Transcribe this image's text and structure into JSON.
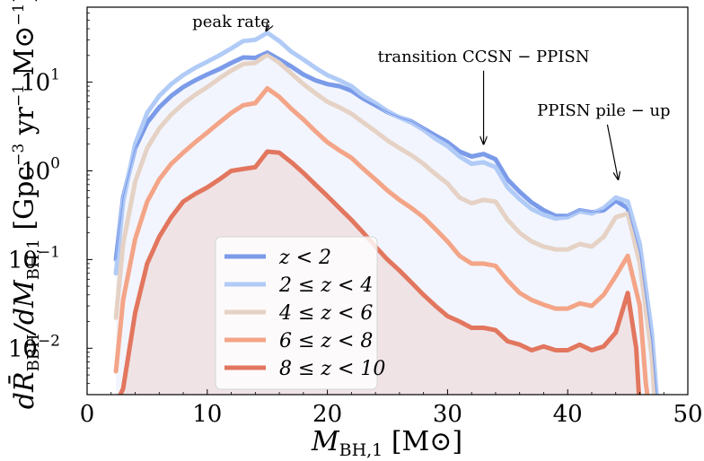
{
  "chart_data": {
    "type": "line",
    "title": "",
    "xlabel": "M_BH,1 [M⊙]",
    "ylabel": "dR̄_BBH/dM_BH,1 [Gpc⁻³ yr⁻¹ M⊙⁻¹]",
    "xlim": [
      0,
      50
    ],
    "ylim": [
      0.003,
      70
    ],
    "yscale": "log",
    "grid": false,
    "legend_position": "lower-left",
    "xticks": [
      {
        "value": 0,
        "label": "0"
      },
      {
        "value": 10,
        "label": "10"
      },
      {
        "value": 20,
        "label": "20"
      },
      {
        "value": 30,
        "label": "30"
      },
      {
        "value": 40,
        "label": "40"
      },
      {
        "value": 50,
        "label": "50"
      }
    ],
    "yticks": [
      {
        "value": 0.01,
        "base": "10",
        "exp": "−2"
      },
      {
        "value": 0.1,
        "base": "10",
        "exp": "−1"
      },
      {
        "value": 1,
        "base": "10",
        "exp": "0"
      },
      {
        "value": 10,
        "base": "10",
        "exp": "1"
      }
    ],
    "annotations": [
      {
        "text": "peak rate",
        "text_xy": [
          12,
          42
        ],
        "arrow_to": [
          14.9,
          38
        ]
      },
      {
        "text": "transition CCSN − PPISN",
        "text_xy": [
          33,
          17
        ],
        "arrow_to": [
          33.0,
          2.0
        ]
      },
      {
        "text": "PPISN pile − up",
        "text_xy": [
          43,
          4.2
        ],
        "arrow_to": [
          44.2,
          0.8
        ]
      }
    ],
    "series": [
      {
        "name": "z < 2",
        "color": "#7b9be9",
        "fill": true,
        "points": [
          [
            2.4,
            0.1
          ],
          [
            3,
            0.5
          ],
          [
            4,
            1.8
          ],
          [
            5,
            3.5
          ],
          [
            6,
            5.2
          ],
          [
            7,
            7.0
          ],
          [
            8,
            8.8
          ],
          [
            9,
            10.5
          ],
          [
            10,
            12.2
          ],
          [
            11,
            14.0
          ],
          [
            12,
            16.5
          ],
          [
            13,
            19.0
          ],
          [
            14,
            18.8
          ],
          [
            15,
            21.5
          ],
          [
            16,
            18.0
          ],
          [
            17,
            15.0
          ],
          [
            18,
            12.2
          ],
          [
            19,
            10.5
          ],
          [
            20,
            9.5
          ],
          [
            21,
            9.0
          ],
          [
            22,
            8.0
          ],
          [
            23,
            6.5
          ],
          [
            24,
            5.5
          ],
          [
            25,
            4.6
          ],
          [
            26,
            4.0
          ],
          [
            27,
            3.6
          ],
          [
            28,
            3.0
          ],
          [
            29,
            2.5
          ],
          [
            30,
            2.1
          ],
          [
            31,
            1.65
          ],
          [
            32,
            1.45
          ],
          [
            33,
            1.55
          ],
          [
            34,
            1.35
          ],
          [
            35,
            0.8
          ],
          [
            36,
            0.58
          ],
          [
            37,
            0.44
          ],
          [
            38,
            0.36
          ],
          [
            39,
            0.31
          ],
          [
            40,
            0.31
          ],
          [
            41,
            0.36
          ],
          [
            42,
            0.34
          ],
          [
            43,
            0.36
          ],
          [
            44,
            0.46
          ],
          [
            45,
            0.38
          ],
          [
            46,
            0.12
          ],
          [
            47,
            0.012
          ],
          [
            47.5,
            0.002
          ]
        ]
      },
      {
        "name": "2 ≤ z < 4",
        "color": "#b1cbf7",
        "fill": false,
        "points": [
          [
            2.4,
            0.07
          ],
          [
            3,
            0.45
          ],
          [
            4,
            2.0
          ],
          [
            5,
            4.5
          ],
          [
            6,
            7.0
          ],
          [
            7,
            9.5
          ],
          [
            8,
            12.0
          ],
          [
            9,
            14.5
          ],
          [
            10,
            17.0
          ],
          [
            11,
            20.0
          ],
          [
            12,
            24.0
          ],
          [
            13,
            29.0
          ],
          [
            14,
            30.0
          ],
          [
            15,
            36.0
          ],
          [
            16,
            29.0
          ],
          [
            17,
            22.0
          ],
          [
            18,
            18.0
          ],
          [
            19,
            14.5
          ],
          [
            20,
            12.0
          ],
          [
            21,
            10.5
          ],
          [
            22,
            9.0
          ],
          [
            23,
            7.0
          ],
          [
            24,
            5.8
          ],
          [
            25,
            4.7
          ],
          [
            26,
            4.0
          ],
          [
            27,
            3.5
          ],
          [
            28,
            2.9
          ],
          [
            29,
            2.3
          ],
          [
            30,
            1.9
          ],
          [
            31,
            1.45
          ],
          [
            32,
            1.2
          ],
          [
            33,
            1.25
          ],
          [
            34,
            1.1
          ],
          [
            35,
            0.65
          ],
          [
            36,
            0.48
          ],
          [
            37,
            0.37
          ],
          [
            38,
            0.32
          ],
          [
            39,
            0.29
          ],
          [
            40,
            0.3
          ],
          [
            41,
            0.35
          ],
          [
            42,
            0.33
          ],
          [
            43,
            0.38
          ],
          [
            44,
            0.5
          ],
          [
            45,
            0.45
          ],
          [
            46,
            0.15
          ],
          [
            47,
            0.015
          ],
          [
            47.5,
            0.002
          ]
        ]
      },
      {
        "name": "4 ≤ z < 6",
        "color": "#e5d2c5",
        "fill": false,
        "points": [
          [
            2.4,
            0.022
          ],
          [
            3,
            0.15
          ],
          [
            4,
            0.75
          ],
          [
            5,
            1.8
          ],
          [
            6,
            3.0
          ],
          [
            7,
            4.3
          ],
          [
            8,
            5.7
          ],
          [
            9,
            7.2
          ],
          [
            10,
            8.8
          ],
          [
            11,
            11.0
          ],
          [
            12,
            13.5
          ],
          [
            13,
            16.0
          ],
          [
            14,
            16.5
          ],
          [
            15,
            20.5
          ],
          [
            16,
            16.5
          ],
          [
            17,
            12.5
          ],
          [
            18,
            9.5
          ],
          [
            19,
            7.5
          ],
          [
            20,
            6.0
          ],
          [
            21,
            5.2
          ],
          [
            22,
            4.4
          ],
          [
            23,
            3.5
          ],
          [
            24,
            2.8
          ],
          [
            25,
            2.2
          ],
          [
            26,
            1.8
          ],
          [
            27,
            1.5
          ],
          [
            28,
            1.2
          ],
          [
            29,
            0.92
          ],
          [
            30,
            0.72
          ],
          [
            31,
            0.5
          ],
          [
            32,
            0.43
          ],
          [
            33,
            0.47
          ],
          [
            34,
            0.45
          ],
          [
            35,
            0.28
          ],
          [
            36,
            0.2
          ],
          [
            37,
            0.16
          ],
          [
            38,
            0.14
          ],
          [
            39,
            0.13
          ],
          [
            40,
            0.13
          ],
          [
            41,
            0.15
          ],
          [
            42,
            0.14
          ],
          [
            43,
            0.18
          ],
          [
            44,
            0.3
          ],
          [
            45,
            0.33
          ],
          [
            46,
            0.09
          ],
          [
            47,
            0.008
          ],
          [
            47.3,
            0.002
          ]
        ]
      },
      {
        "name": "6 ≤ z < 8",
        "color": "#f4a487",
        "fill": false,
        "points": [
          [
            2.4,
            0.0055
          ],
          [
            3,
            0.035
          ],
          [
            4,
            0.17
          ],
          [
            5,
            0.45
          ],
          [
            6,
            0.8
          ],
          [
            7,
            1.2
          ],
          [
            8,
            1.6
          ],
          [
            9,
            2.1
          ],
          [
            10,
            2.7
          ],
          [
            11,
            3.5
          ],
          [
            12,
            4.5
          ],
          [
            13,
            5.5
          ],
          [
            14,
            5.8
          ],
          [
            15,
            8.5
          ],
          [
            16,
            6.8
          ],
          [
            17,
            5.0
          ],
          [
            18,
            3.8
          ],
          [
            19,
            2.8
          ],
          [
            20,
            2.1
          ],
          [
            21,
            1.7
          ],
          [
            22,
            1.4
          ],
          [
            23,
            1.05
          ],
          [
            24,
            0.8
          ],
          [
            25,
            0.6
          ],
          [
            26,
            0.47
          ],
          [
            27,
            0.38
          ],
          [
            28,
            0.3
          ],
          [
            29,
            0.22
          ],
          [
            30,
            0.16
          ],
          [
            31,
            0.11
          ],
          [
            32,
            0.09
          ],
          [
            33,
            0.09
          ],
          [
            34,
            0.085
          ],
          [
            35,
            0.058
          ],
          [
            36,
            0.042
          ],
          [
            37,
            0.035
          ],
          [
            38,
            0.031
          ],
          [
            39,
            0.028
          ],
          [
            40,
            0.028
          ],
          [
            41,
            0.032
          ],
          [
            42,
            0.03
          ],
          [
            43,
            0.04
          ],
          [
            44,
            0.065
          ],
          [
            45,
            0.11
          ],
          [
            46,
            0.03
          ],
          [
            46.5,
            0.004
          ],
          [
            46.8,
            0.002
          ]
        ]
      },
      {
        "name": "8 ≤ z < 10",
        "color": "#e2765e",
        "fill": true,
        "points": [
          [
            2.5,
            0.0025
          ],
          [
            3,
            0.0035
          ],
          [
            4,
            0.025
          ],
          [
            5,
            0.09
          ],
          [
            6,
            0.18
          ],
          [
            7,
            0.3
          ],
          [
            8,
            0.45
          ],
          [
            9,
            0.55
          ],
          [
            10,
            0.65
          ],
          [
            11,
            0.8
          ],
          [
            12,
            1.0
          ],
          [
            13,
            1.05
          ],
          [
            14,
            1.1
          ],
          [
            15,
            1.65
          ],
          [
            16,
            1.6
          ],
          [
            17,
            1.25
          ],
          [
            18,
            0.95
          ],
          [
            19,
            0.7
          ],
          [
            20,
            0.52
          ],
          [
            21,
            0.38
          ],
          [
            22,
            0.28
          ],
          [
            23,
            0.2
          ],
          [
            24,
            0.14
          ],
          [
            25,
            0.1
          ],
          [
            26,
            0.075
          ],
          [
            27,
            0.055
          ],
          [
            28,
            0.04
          ],
          [
            29,
            0.03
          ],
          [
            30,
            0.023
          ],
          [
            31,
            0.02
          ],
          [
            32,
            0.017
          ],
          [
            33,
            0.017
          ],
          [
            34,
            0.016
          ],
          [
            35,
            0.012
          ],
          [
            36,
            0.011
          ],
          [
            37,
            0.0095
          ],
          [
            38,
            0.0105
          ],
          [
            39,
            0.0095
          ],
          [
            40,
            0.0095
          ],
          [
            41,
            0.011
          ],
          [
            42,
            0.0095
          ],
          [
            43,
            0.0105
          ],
          [
            44,
            0.015
          ],
          [
            45,
            0.042
          ],
          [
            45.7,
            0.01
          ],
          [
            46,
            0.002
          ]
        ]
      }
    ]
  }
}
